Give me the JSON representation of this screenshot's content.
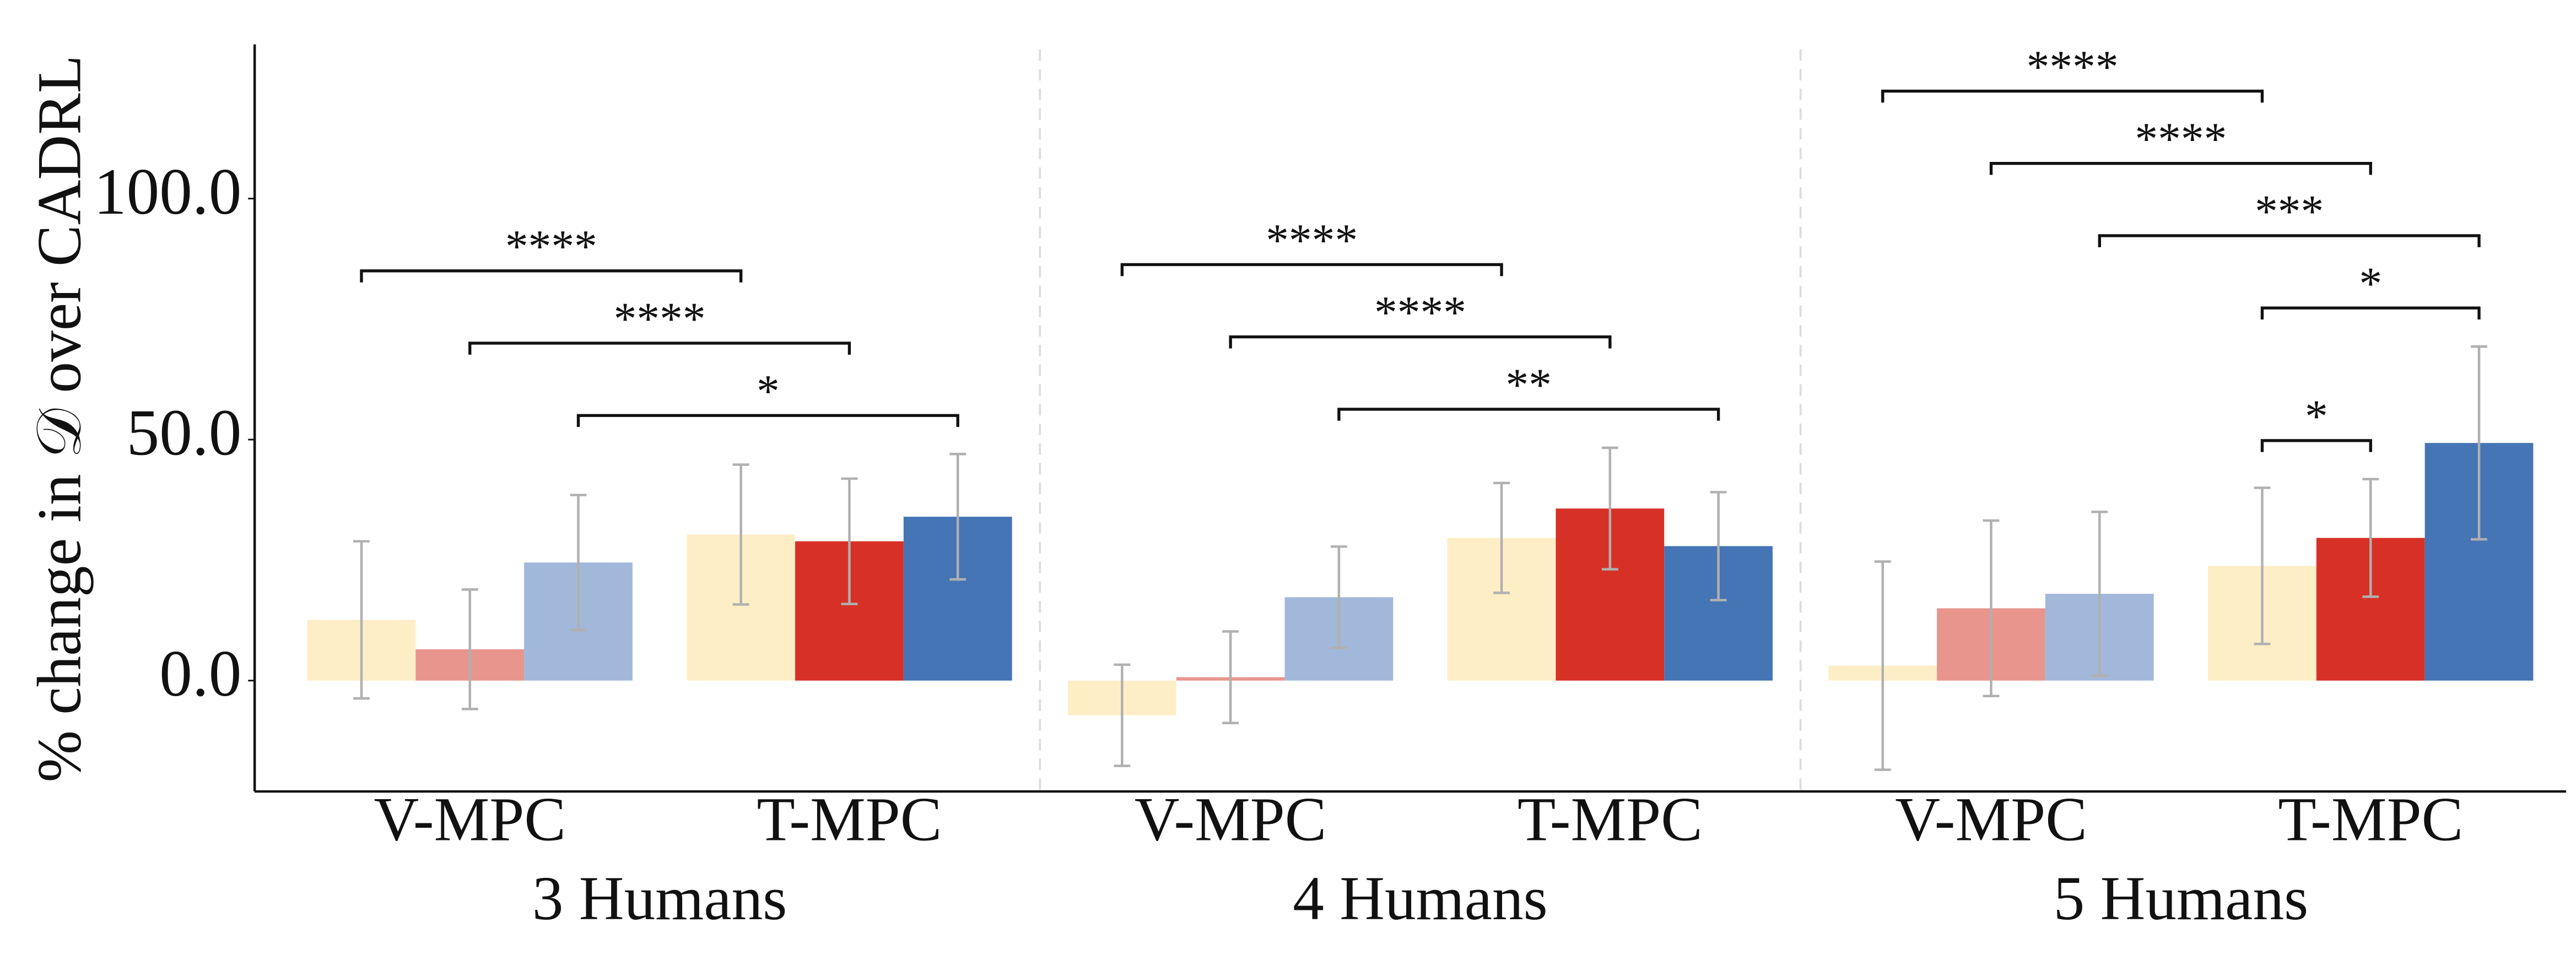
{
  "chart_data": {
    "type": "bar",
    "y_label": "% change in 𝒟 over CADRL",
    "groups": [
      "3 Humans",
      "4 Humans",
      "5 Humans"
    ],
    "categories": [
      "V-MPC",
      "T-MPC",
      "V-MPC",
      "T-MPC",
      "V-MPC",
      "T-MPC"
    ],
    "series": [
      {
        "colors": [
          "#fdeec6",
          "#fdeec6"
        ],
        "values": [
          12.6,
          30.3,
          -7.2,
          29.6,
          3.1,
          23.8
        ],
        "errors": [
          16.3,
          14.5,
          10.5,
          11.4,
          21.6,
          16.2
        ]
      },
      {
        "colors": [
          "#e8958e",
          "#d73027"
        ],
        "values": [
          6.5,
          28.9,
          0.7,
          35.7,
          15.0,
          29.6
        ],
        "errors": [
          12.4,
          13.0,
          9.5,
          12.6,
          18.2,
          12.2
        ]
      },
      {
        "colors": [
          "#a2b8da",
          "#4575b4"
        ],
        "values": [
          24.5,
          34.0,
          17.3,
          27.9,
          18.0,
          49.3
        ],
        "errors": [
          14.0,
          13.0,
          10.5,
          11.2,
          17.0,
          20.0
        ]
      }
    ],
    "error_color": "#b0b0b0",
    "ylim": [
      -23,
      132
    ],
    "yticks": [
      {
        "value": 0,
        "label": "0.0"
      },
      {
        "value": 50,
        "label": "50.0"
      },
      {
        "value": 100,
        "label": "100.0"
      }
    ],
    "annotations": [
      {
        "label": "****",
        "from": [
          0,
          0
        ],
        "to": [
          1,
          0
        ]
      },
      {
        "label": "****",
        "from": [
          0,
          1
        ],
        "to": [
          1,
          1
        ]
      },
      {
        "label": "*",
        "from": [
          0,
          2
        ],
        "to": [
          1,
          2
        ]
      },
      {
        "label": "****",
        "from": [
          2,
          0
        ],
        "to": [
          3,
          0
        ]
      },
      {
        "label": "****",
        "from": [
          2,
          1
        ],
        "to": [
          3,
          1
        ]
      },
      {
        "label": "**",
        "from": [
          2,
          2
        ],
        "to": [
          3,
          2
        ]
      },
      {
        "label": "****",
        "from": [
          4,
          0
        ],
        "to": [
          5,
          0
        ]
      },
      {
        "label": "****",
        "from": [
          4,
          1
        ],
        "to": [
          5,
          1
        ]
      },
      {
        "label": "***",
        "from": [
          4,
          2
        ],
        "to": [
          5,
          2
        ]
      },
      {
        "label": "*",
        "from": [
          5,
          0
        ],
        "to": [
          5,
          2
        ]
      },
      {
        "label": "*",
        "from": [
          5,
          0
        ],
        "to": [
          5,
          1
        ]
      }
    ]
  }
}
